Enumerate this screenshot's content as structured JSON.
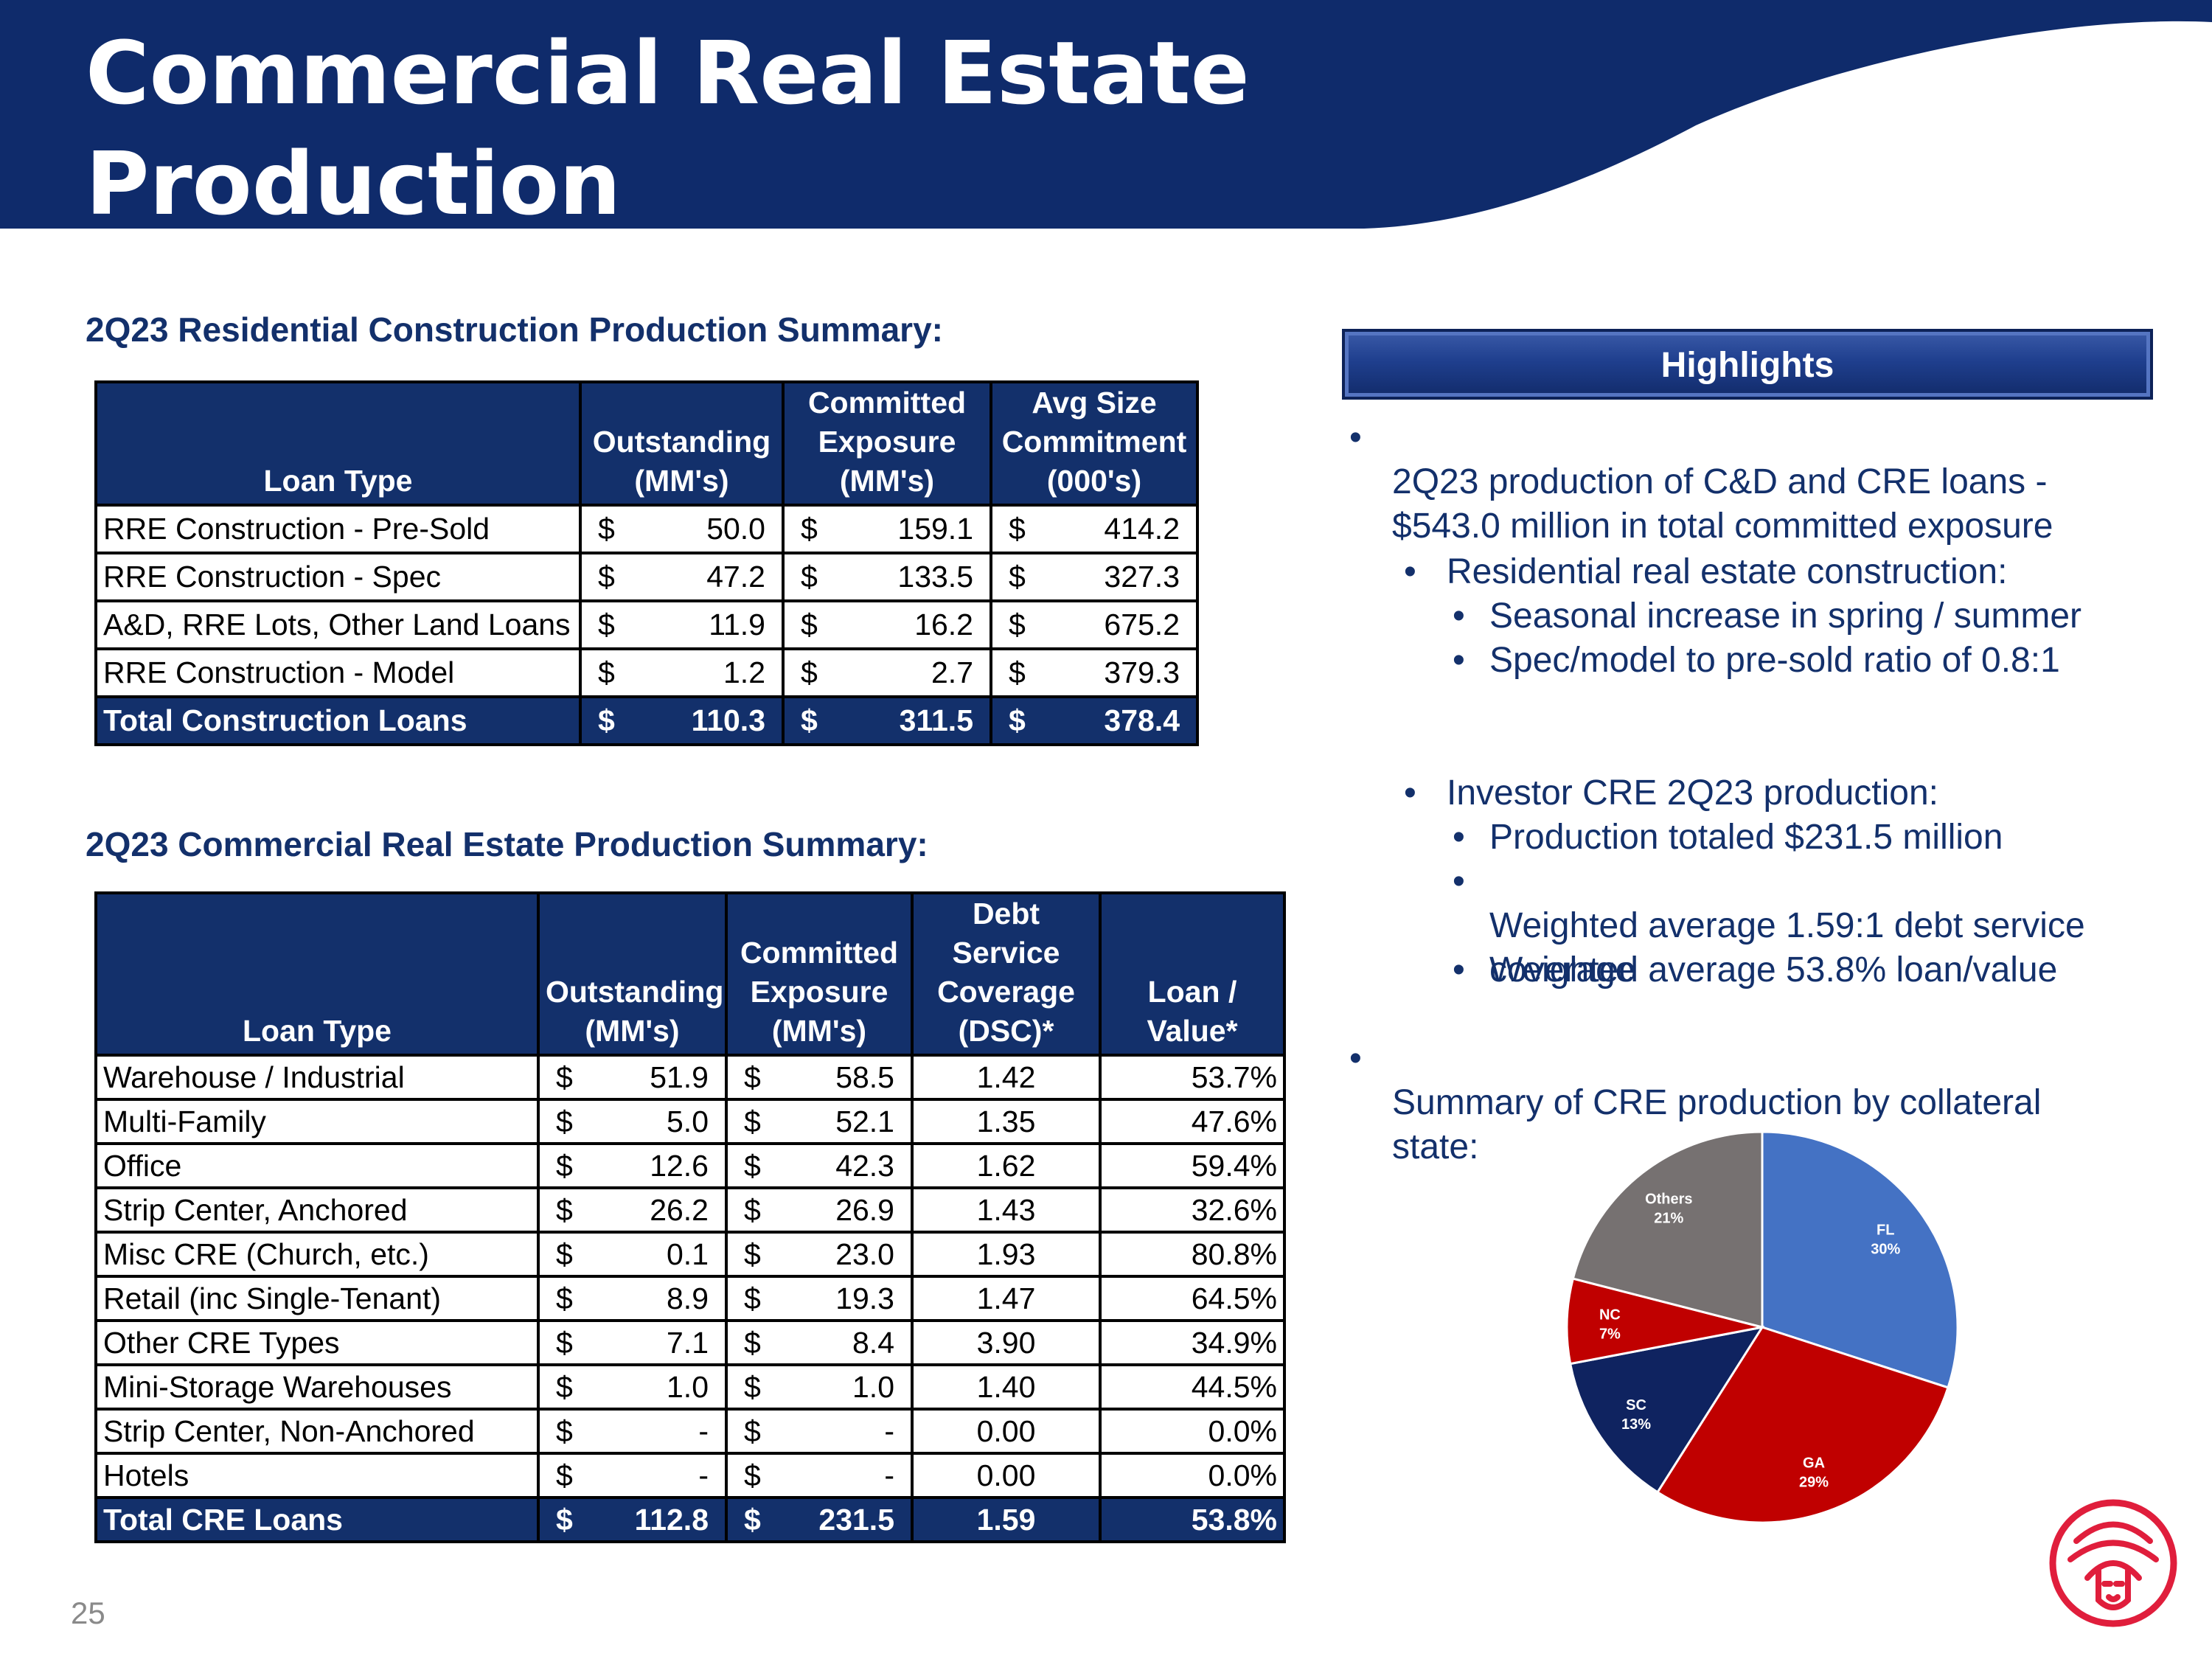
{
  "title": "Commercial Real Estate\nProduction",
  "page_number": "25",
  "residential": {
    "heading": "2Q23 Residential Construction Production Summary:",
    "headers": [
      "Loan Type",
      "Outstanding (MM's)",
      "Committed Exposure (MM's)",
      "Avg Size Commitment (000's)"
    ],
    "rows": [
      {
        "type": "RRE Construction - Pre-Sold",
        "out_cur": "$",
        "out": "50.0",
        "com_cur": "$",
        "com": "159.1",
        "avg_cur": "$",
        "avg": "414.2"
      },
      {
        "type": "RRE Construction - Spec",
        "out_cur": "$",
        "out": "47.2",
        "com_cur": "$",
        "com": "133.5",
        "avg_cur": "$",
        "avg": "327.3"
      },
      {
        "type": "A&D, RRE Lots, Other Land Loans",
        "out_cur": "$",
        "out": "11.9",
        "com_cur": "$",
        "com": "16.2",
        "avg_cur": "$",
        "avg": "675.2"
      },
      {
        "type": "RRE Construction - Model",
        "out_cur": "$",
        "out": "1.2",
        "com_cur": "$",
        "com": "2.7",
        "avg_cur": "$",
        "avg": "379.3"
      }
    ],
    "total": {
      "type": "Total Construction Loans",
      "out_cur": "$",
      "out": "110.3",
      "com_cur": "$",
      "com": "311.5",
      "avg_cur": "$",
      "avg": "378.4"
    }
  },
  "cre": {
    "heading": "2Q23 Commercial Real Estate Production Summary:",
    "headers": [
      "Loan Type",
      "Outstanding (MM's)",
      "Committed Exposure (MM's)",
      "Debt Service Coverage (DSC)*",
      "Loan / Value*"
    ],
    "rows": [
      {
        "type": "Warehouse / Industrial",
        "out_cur": "$",
        "out": "51.9",
        "com_cur": "$",
        "com": "58.5",
        "dsc": "1.42",
        "ltv": "53.7%"
      },
      {
        "type": "Multi-Family",
        "out_cur": "$",
        "out": "5.0",
        "com_cur": "$",
        "com": "52.1",
        "dsc": "1.35",
        "ltv": "47.6%"
      },
      {
        "type": "Office",
        "out_cur": "$",
        "out": "12.6",
        "com_cur": "$",
        "com": "42.3",
        "dsc": "1.62",
        "ltv": "59.4%"
      },
      {
        "type": "Strip Center, Anchored",
        "out_cur": "$",
        "out": "26.2",
        "com_cur": "$",
        "com": "26.9",
        "dsc": "1.43",
        "ltv": "32.6%"
      },
      {
        "type": "Misc CRE (Church, etc.)",
        "out_cur": "$",
        "out": "0.1",
        "com_cur": "$",
        "com": "23.0",
        "dsc": "1.93",
        "ltv": "80.8%"
      },
      {
        "type": "Retail (inc Single-Tenant)",
        "out_cur": "$",
        "out": "8.9",
        "com_cur": "$",
        "com": "19.3",
        "dsc": "1.47",
        "ltv": "64.5%"
      },
      {
        "type": "Other CRE Types",
        "out_cur": "$",
        "out": "7.1",
        "com_cur": "$",
        "com": "8.4",
        "dsc": "3.90",
        "ltv": "34.9%"
      },
      {
        "type": "Mini-Storage Warehouses",
        "out_cur": "$",
        "out": "1.0",
        "com_cur": "$",
        "com": "1.0",
        "dsc": "1.40",
        "ltv": "44.5%"
      },
      {
        "type": "Strip Center, Non-Anchored",
        "out_cur": "$",
        "out": "-",
        "com_cur": "$",
        "com": "-",
        "dsc": "0.00",
        "ltv": "0.0%"
      },
      {
        "type": "Hotels",
        "out_cur": "$",
        "out": "-",
        "com_cur": "$",
        "com": "-",
        "dsc": "0.00",
        "ltv": "0.0%"
      }
    ],
    "total": {
      "type": "Total CRE Loans",
      "out_cur": "$",
      "out": "112.8",
      "com_cur": "$",
      "com": "231.5",
      "dsc": "1.59",
      "ltv": "53.8%"
    }
  },
  "highlights": {
    "title": "Highlights",
    "b1": "2Q23 production of C&D and CRE loans -\n$543.0 million in total committed exposure",
    "b2": "Residential real estate construction:",
    "b2a": "Seasonal increase in spring / summer",
    "b2b": "Spec/model to pre-sold ratio of 0.8:1",
    "b3": "Investor CRE 2Q23 production:",
    "b3a": "Production totaled $231.5 million",
    "b3b": "Weighted average 1.59:1 debt service\ncoverage",
    "b3c": "Weighted average 53.8% loan/value",
    "b4": "Summary of CRE production by collateral\nstate:",
    "bullet_char": "•"
  },
  "chart_data": {
    "type": "pie",
    "title": "",
    "slices": [
      {
        "label": "FL",
        "pct_label": "30%",
        "value": 30,
        "color": "#4472c4"
      },
      {
        "label": "GA",
        "pct_label": "29%",
        "value": 29,
        "color": "#c00000"
      },
      {
        "label": "SC",
        "pct_label": "13%",
        "value": 13,
        "color": "#0f2360"
      },
      {
        "label": "NC",
        "pct_label": "7%",
        "value": 7,
        "color": "#c00000"
      },
      {
        "label": "Others",
        "pct_label": "21%",
        "value": 21,
        "color": "#767171"
      }
    ]
  },
  "colors": {
    "brand_navy": "#13306b",
    "logo_red": "#e01e3c"
  }
}
